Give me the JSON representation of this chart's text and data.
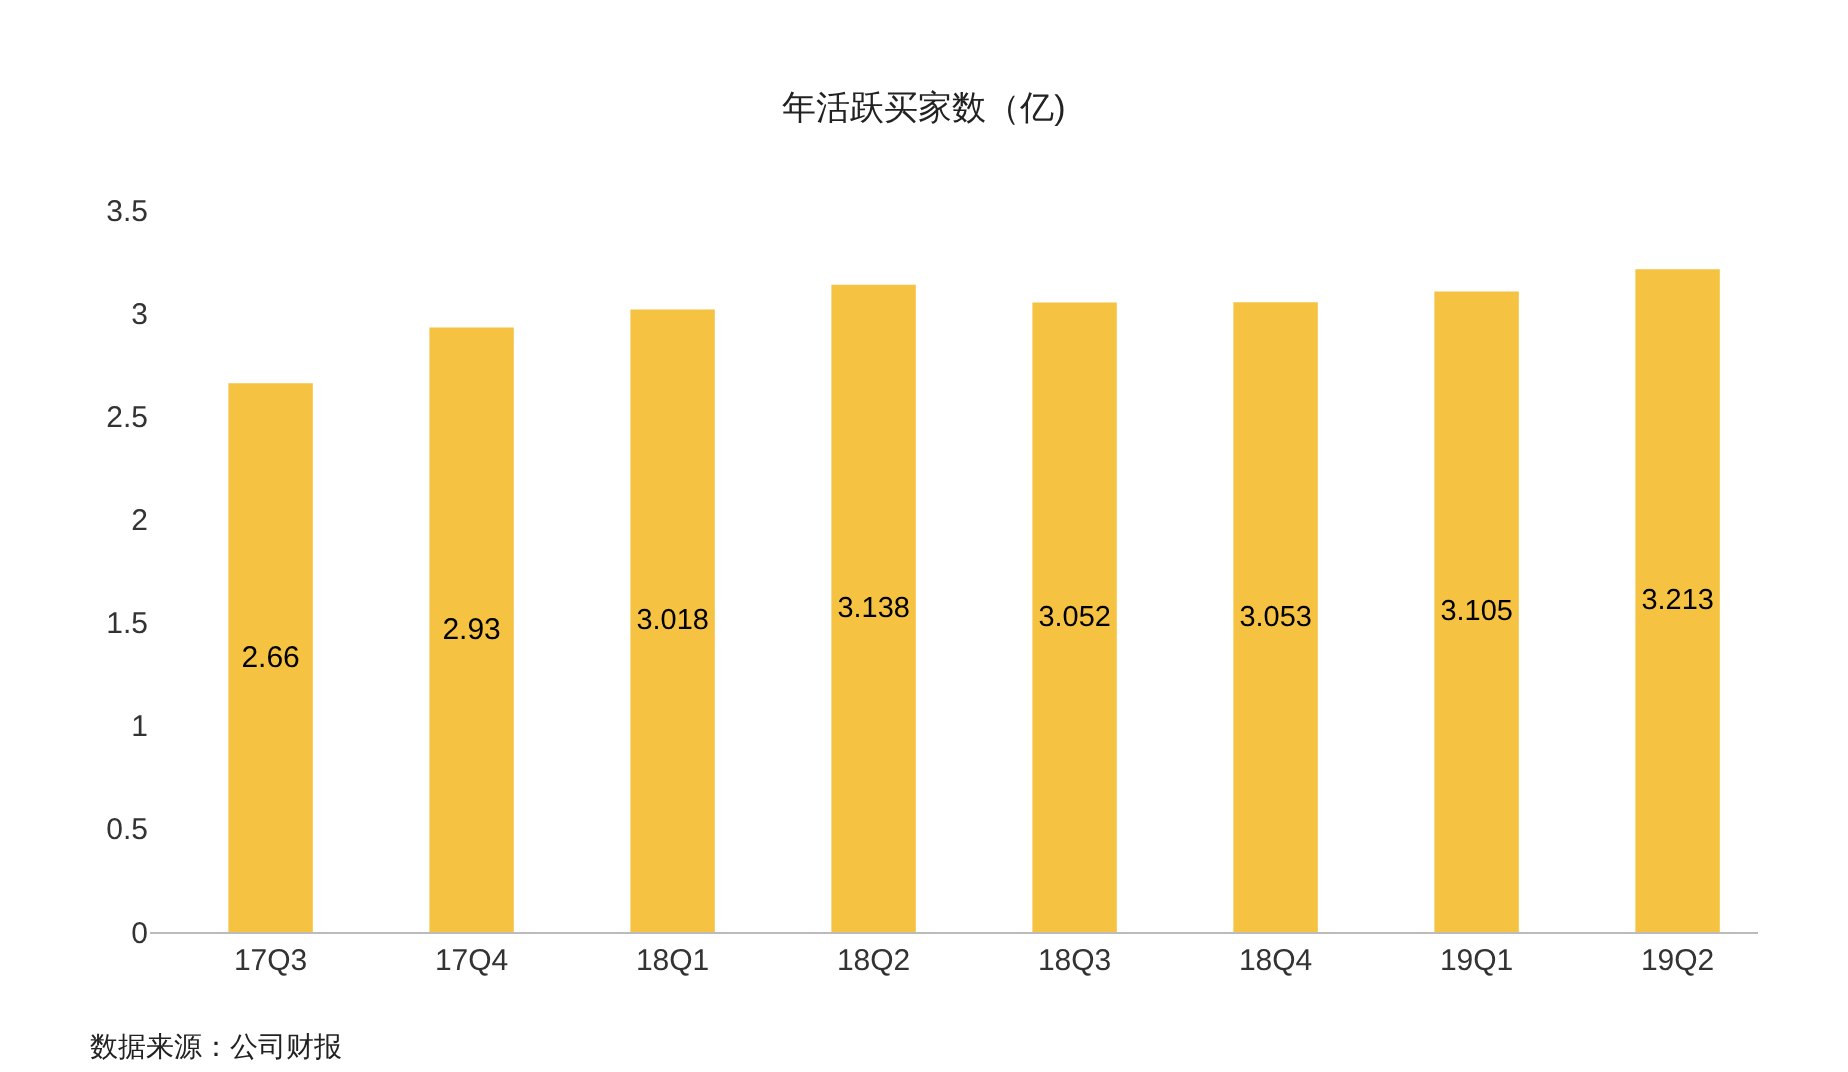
{
  "chart_data": {
    "type": "bar",
    "title": "年活跃买家数（亿)",
    "categories": [
      "17Q3",
      "17Q4",
      "18Q1",
      "18Q2",
      "18Q3",
      "18Q4",
      "19Q1",
      "19Q2"
    ],
    "values": [
      2.66,
      2.93,
      3.018,
      3.138,
      3.052,
      3.053,
      3.105,
      3.213
    ],
    "color": "#f5c242",
    "ylim": [
      0,
      3.5
    ],
    "yticks": [
      0,
      0.5,
      1,
      1.5,
      2,
      2.5,
      3,
      3.5
    ],
    "grid": false,
    "data_labels": true,
    "annotations": [
      "数据来源：公司财报"
    ]
  }
}
